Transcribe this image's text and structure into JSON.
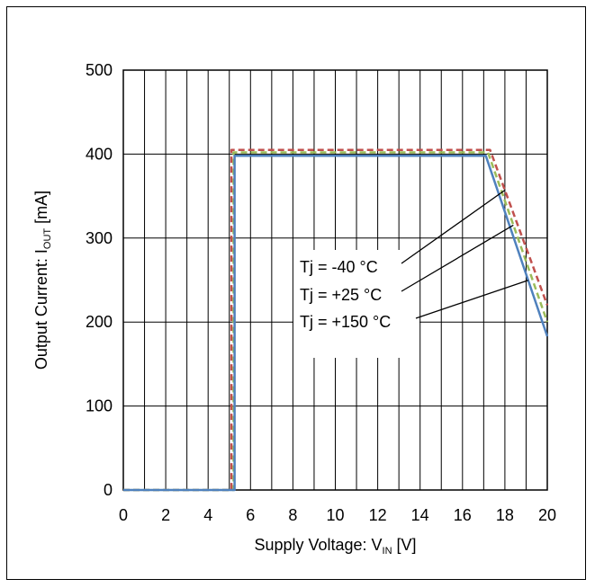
{
  "chart_data": {
    "type": "line",
    "xlabel_main": "Supply Voltage: V",
    "xlabel_sub": "IN",
    "xlabel_unit": " [V]",
    "ylabel_main": "Output Current: I",
    "ylabel_sub": "OUT",
    "ylabel_unit": " [mA]",
    "xlim": [
      0,
      20
    ],
    "ylim": [
      0,
      500
    ],
    "xticks": [
      0,
      2,
      4,
      6,
      8,
      10,
      12,
      14,
      16,
      18,
      20
    ],
    "yticks": [
      0,
      100,
      200,
      300,
      400,
      500
    ],
    "x_minor_gridlines": [
      1,
      3,
      5,
      7,
      9,
      11,
      13,
      15,
      17,
      19
    ],
    "grid": true,
    "series": [
      {
        "name": "Tj = -40 °C",
        "color": "#c0504d",
        "dash": "dashed",
        "points": [
          [
            0,
            0
          ],
          [
            5.1,
            0
          ],
          [
            5.1,
            405
          ],
          [
            17.3,
            405
          ],
          [
            20,
            220
          ]
        ]
      },
      {
        "name": "Tj = +25 °C",
        "color": "#9bbb59",
        "dash": "dashed",
        "points": [
          [
            0,
            0
          ],
          [
            5.2,
            0
          ],
          [
            5.2,
            402
          ],
          [
            17.2,
            402
          ],
          [
            20,
            200
          ]
        ]
      },
      {
        "name": "Tj = +150 °C",
        "color": "#4f81bd",
        "dash": "solid",
        "points": [
          [
            0,
            0
          ],
          [
            5.25,
            0
          ],
          [
            5.25,
            398
          ],
          [
            17.1,
            398
          ],
          [
            20,
            183
          ]
        ]
      }
    ],
    "annotations": [
      {
        "label": "Tj = -40 °C",
        "series": 0,
        "target_x": 18.0
      },
      {
        "label": "Tj = +25 °C",
        "series": 1,
        "target_x": 18.4
      },
      {
        "label": "Tj = +150 °C",
        "series": 2,
        "target_x": 19.1
      }
    ]
  }
}
